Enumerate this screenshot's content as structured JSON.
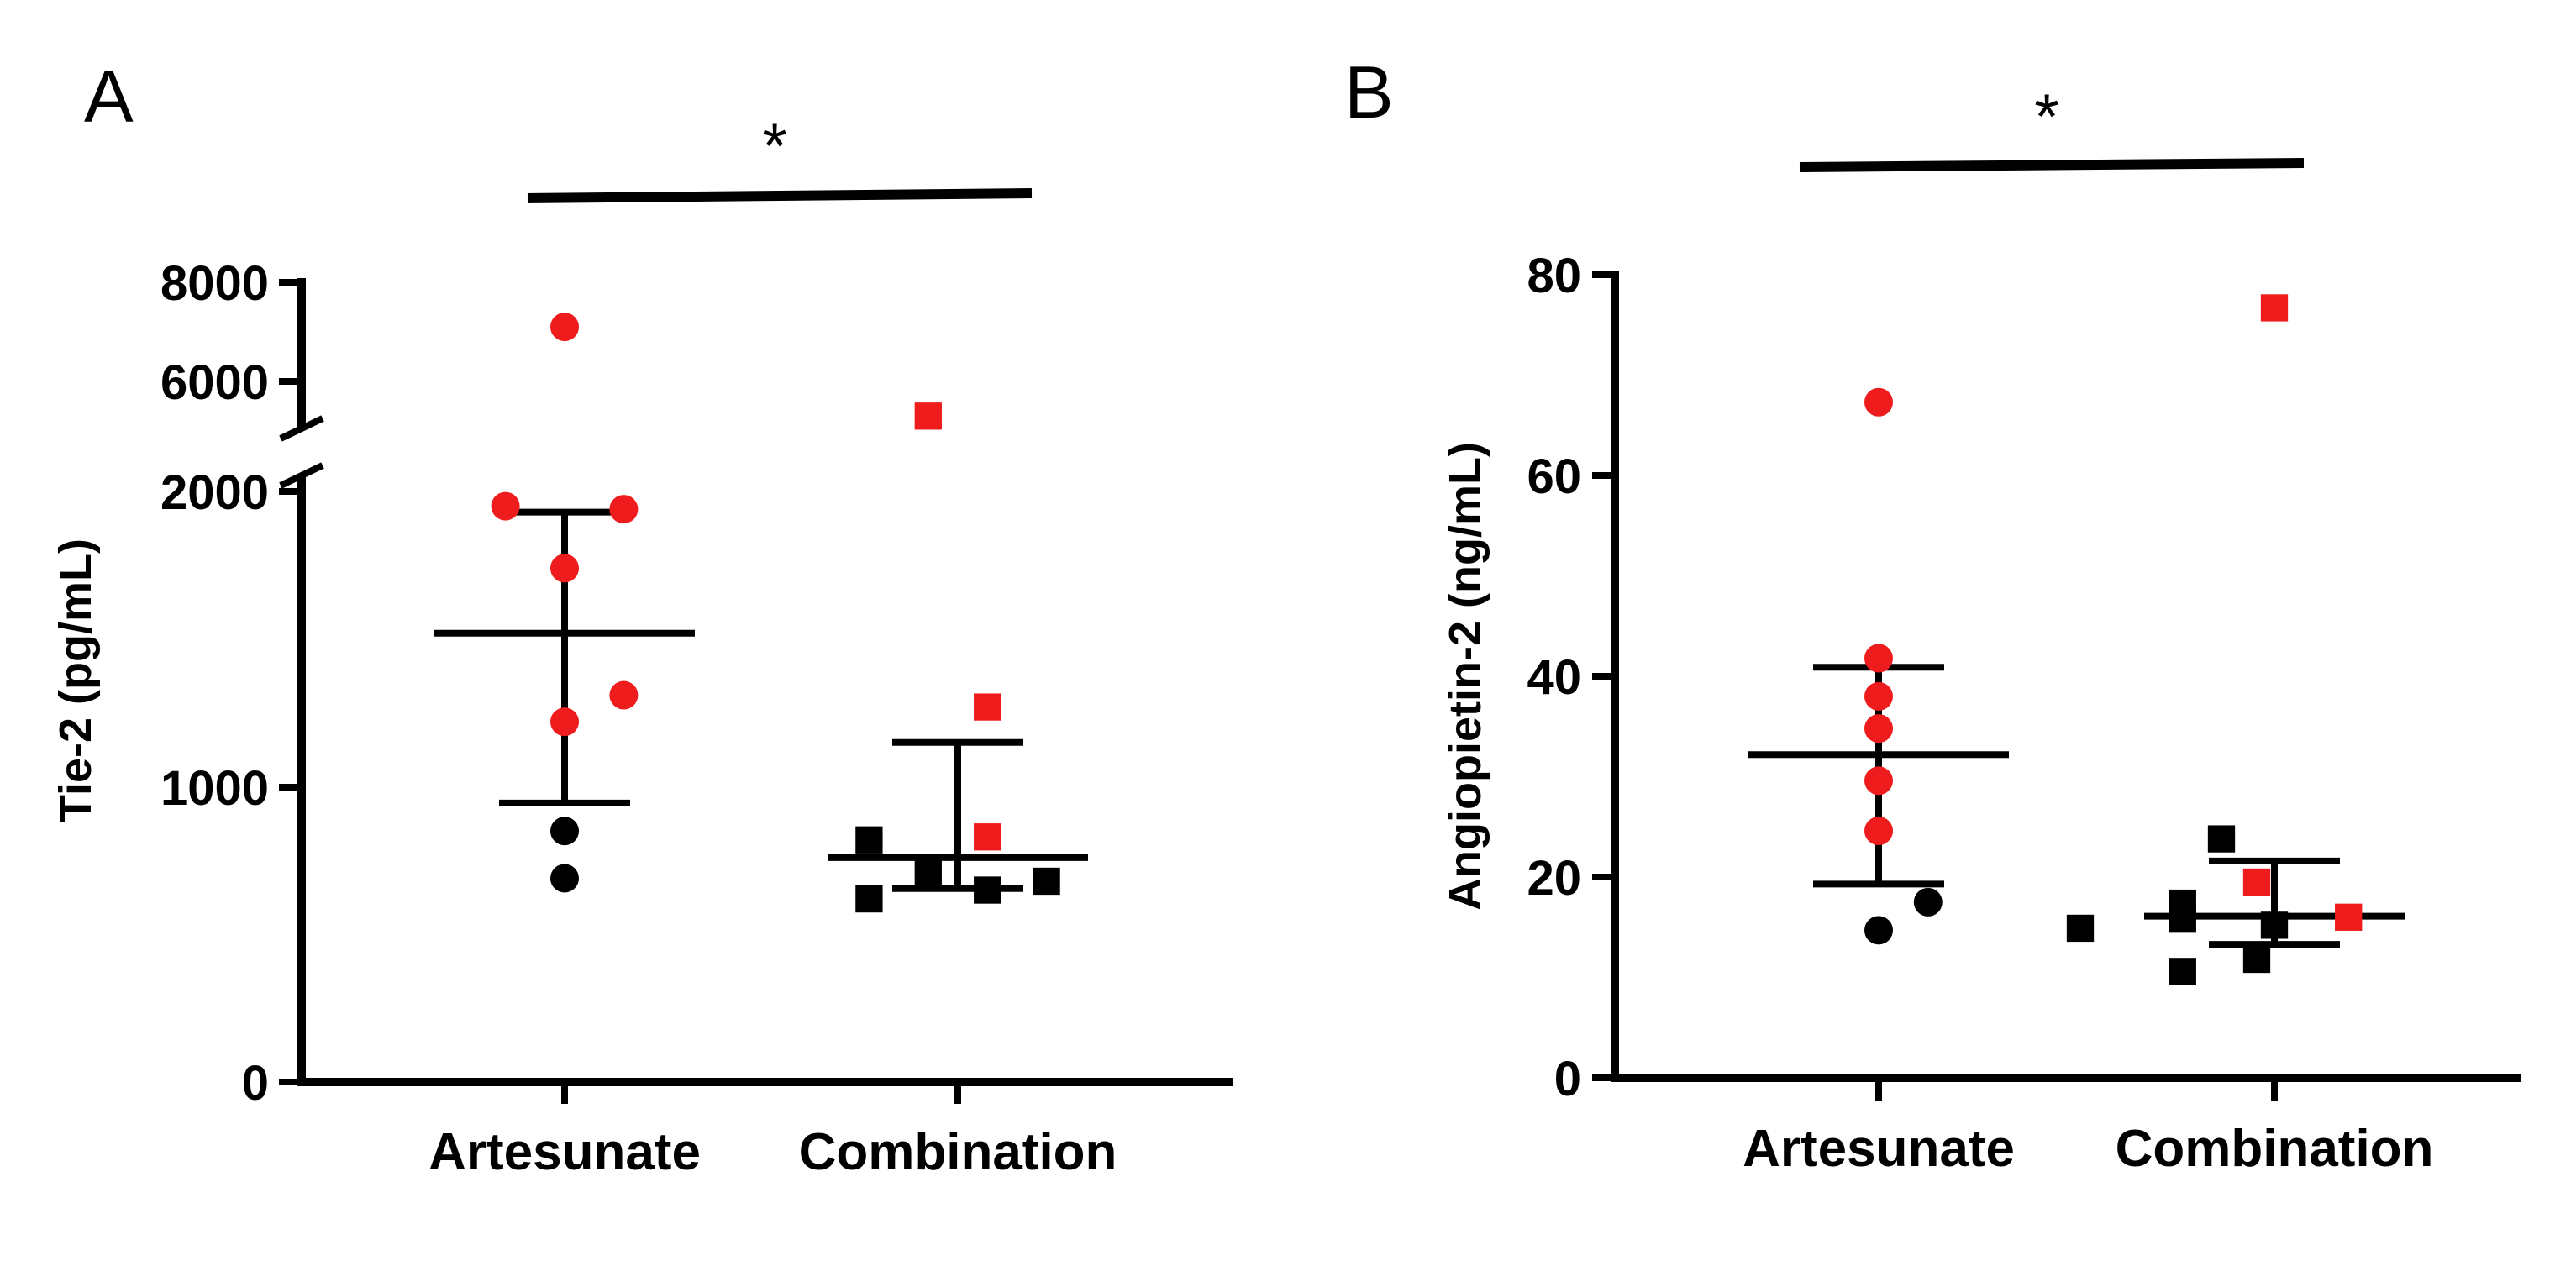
{
  "chart_data": [
    {
      "panel": "A",
      "type": "scatter",
      "ylabel": "Tie-2 (pg/mL)",
      "categories": [
        "Artesunate",
        "Combination"
      ],
      "axis_break": {
        "lower_range": [
          0,
          2000
        ],
        "upper_range": [
          5000,
          8000
        ],
        "lower_ticks": [
          "0",
          "1000",
          "2000"
        ],
        "upper_ticks": [
          "6000",
          "8000"
        ]
      },
      "significance": "*",
      "colors": {
        "highlight": "#ee1c1c",
        "other": "#000000"
      },
      "series": [
        {
          "name": "Artesunate",
          "marker": "circle",
          "points": [
            {
              "y": 7100,
              "dx": 0,
              "color": "red"
            },
            {
              "y": 1950,
              "dx": -0.16,
              "color": "red"
            },
            {
              "y": 1940,
              "dx": 0.16,
              "color": "red"
            },
            {
              "y": 1740,
              "dx": 0,
              "color": "red"
            },
            {
              "y": 1310,
              "dx": 0.16,
              "color": "red"
            },
            {
              "y": 1220,
              "dx": 0,
              "color": "red"
            },
            {
              "y": 850,
              "dx": 0,
              "color": "black"
            },
            {
              "y": 690,
              "dx": 0,
              "color": "black"
            }
          ],
          "mean": 1520,
          "error_low": 945,
          "error_high": 1930
        },
        {
          "name": "Combination",
          "marker": "square",
          "points": [
            {
              "y": 5300,
              "dx": -0.08,
              "color": "red"
            },
            {
              "y": 1270,
              "dx": 0.08,
              "color": "red"
            },
            {
              "y": 830,
              "dx": 0.08,
              "color": "red"
            },
            {
              "y": 820,
              "dx": -0.24,
              "color": "black"
            },
            {
              "y": 710,
              "dx": -0.08,
              "color": "black"
            },
            {
              "y": 680,
              "dx": 0.24,
              "color": "black"
            },
            {
              "y": 650,
              "dx": 0.08,
              "color": "black"
            },
            {
              "y": 620,
              "dx": -0.24,
              "color": "black"
            }
          ],
          "mean": 760,
          "error_low": 655,
          "error_high": 1150
        }
      ]
    },
    {
      "panel": "B",
      "type": "scatter",
      "ylabel": "Angiopietin-2 (ng/mL)",
      "categories": [
        "Artesunate",
        "Combination"
      ],
      "ylim": [
        0,
        80
      ],
      "yticks": [
        "0",
        "20",
        "40",
        "60",
        "80"
      ],
      "significance": "*",
      "colors": {
        "highlight": "#ee1c1c",
        "other": "#000000"
      },
      "series": [
        {
          "name": "Artesunate",
          "marker": "circle",
          "points": [
            {
              "y": 67.3,
              "dx": 0,
              "color": "red"
            },
            {
              "y": 41.8,
              "dx": 0,
              "color": "red"
            },
            {
              "y": 38.0,
              "dx": 0,
              "color": "red"
            },
            {
              "y": 34.8,
              "dx": 0,
              "color": "red"
            },
            {
              "y": 29.6,
              "dx": 0,
              "color": "red"
            },
            {
              "y": 24.6,
              "dx": 0,
              "color": "red"
            },
            {
              "y": 17.5,
              "dx": 0.14,
              "color": "black"
            },
            {
              "y": 14.7,
              "dx": 0,
              "color": "black"
            }
          ],
          "mean": 32.2,
          "error_low": 19.3,
          "error_high": 40.9
        },
        {
          "name": "Combination",
          "marker": "square",
          "points": [
            {
              "y": 76.7,
              "dx": 0,
              "color": "red"
            },
            {
              "y": 19.5,
              "dx": -0.05,
              "color": "red"
            },
            {
              "y": 16.0,
              "dx": 0.21,
              "color": "red"
            },
            {
              "y": 23.8,
              "dx": -0.15,
              "color": "black"
            },
            {
              "y": 17.4,
              "dx": -0.26,
              "color": "black"
            },
            {
              "y": 15.8,
              "dx": -0.26,
              "color": "black"
            },
            {
              "y": 15.2,
              "dx": 0.0,
              "color": "black"
            },
            {
              "y": 14.9,
              "dx": -0.55,
              "color": "black"
            },
            {
              "y": 11.8,
              "dx": -0.05,
              "color": "black"
            },
            {
              "y": 10.6,
              "dx": -0.26,
              "color": "black"
            }
          ],
          "mean": 16.1,
          "error_low": 13.3,
          "error_high": 21.6
        }
      ]
    }
  ]
}
